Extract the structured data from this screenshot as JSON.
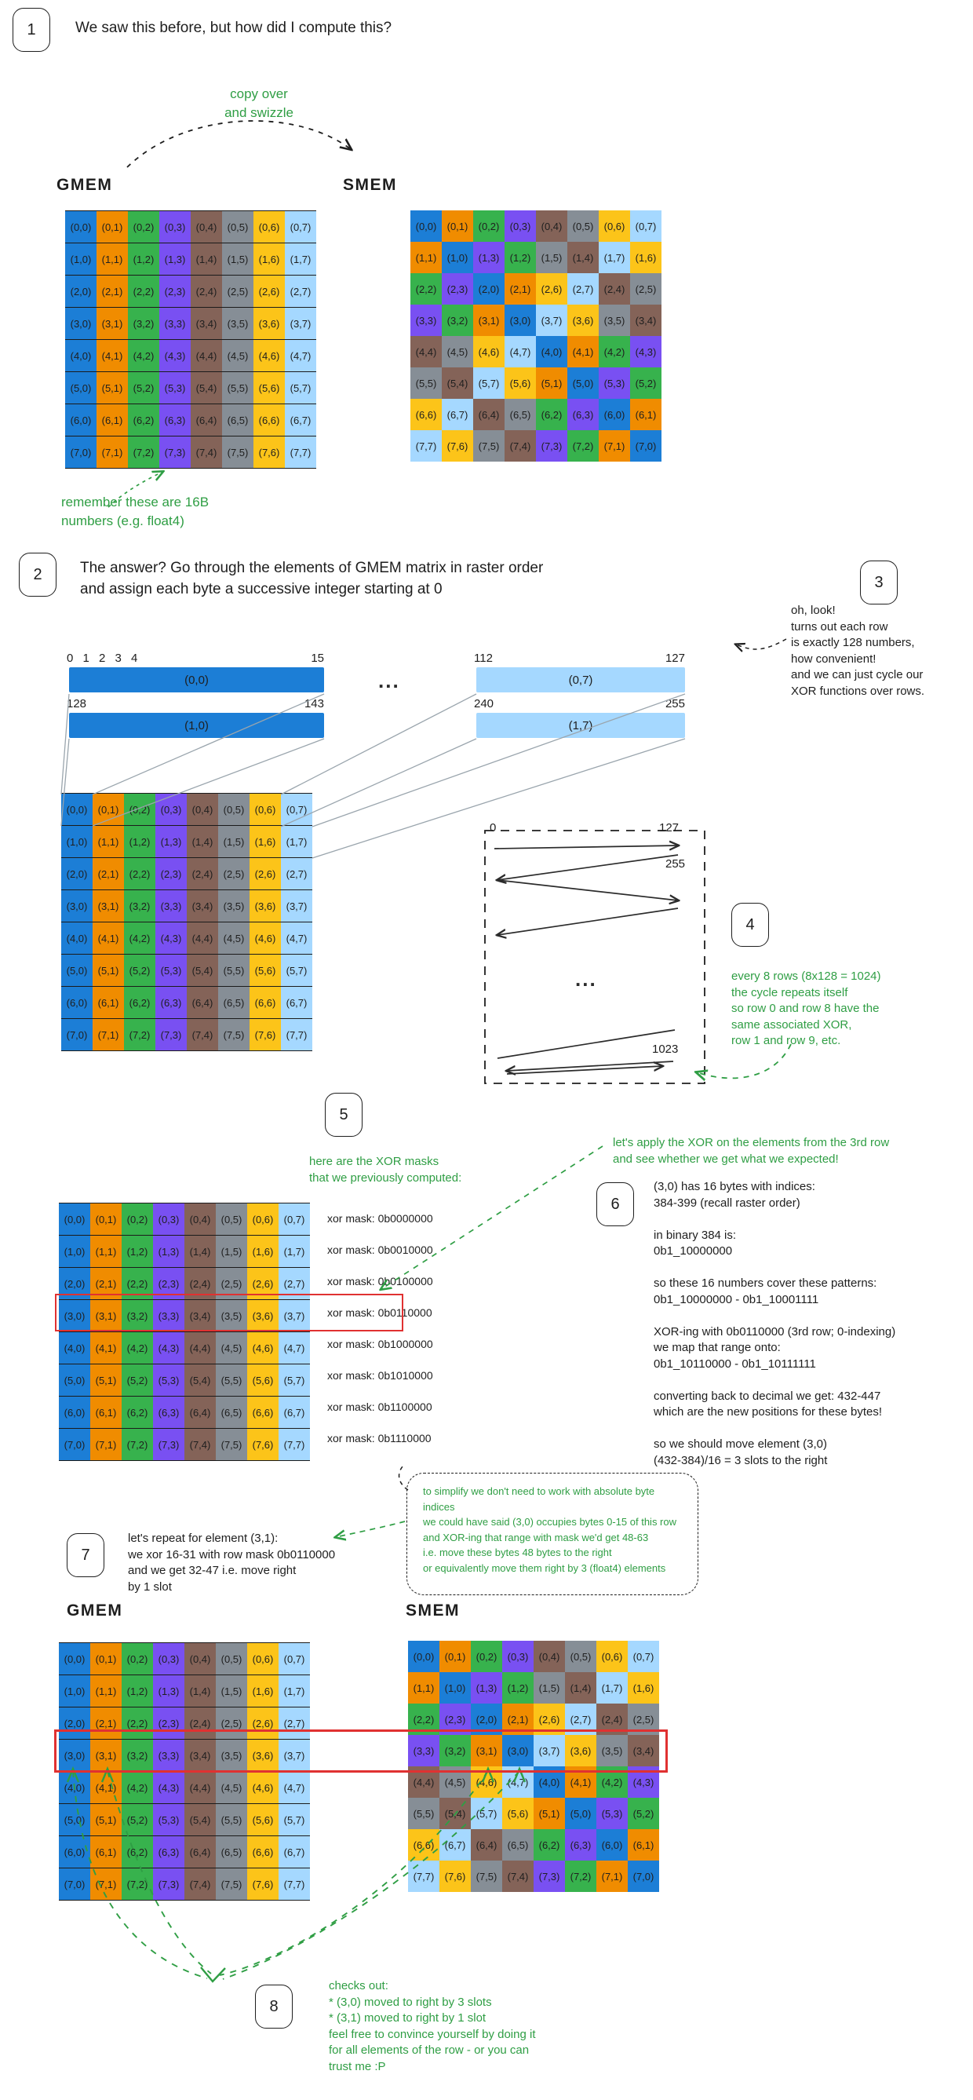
{
  "palette": {
    "0": "#1c7ed6",
    "1": "#f08c00",
    "2": "#37b24d",
    "3": "#7950f2",
    "4": "#846358",
    "5": "#868e96",
    "6": "#fcc419",
    "7": "#a5d8ff"
  },
  "colors": {
    "green": "#2f9e44",
    "red": "#e03131",
    "ink": "#1e1e1e",
    "connector": "#9aa5ad"
  },
  "labels": {
    "gmem_top": "GMEM",
    "smem_top": "SMEM",
    "gmem_bottom": "GMEM",
    "smem_bottom": "SMEM",
    "ellipsis": "...",
    "zigzag_ellipsis": "..."
  },
  "steps": {
    "s1": {
      "badge": "1",
      "text": "We saw this before, but how did I compute this?"
    },
    "s2": {
      "badge": "2",
      "text": "The answer? Go through the elements of GMEM matrix in raster order\nand assign each byte a successive integer starting at 0"
    },
    "s3": {
      "badge": "3",
      "text": "oh, look!\nturns out each row\nis exactly 128 numbers,\nhow convenient!\nand we can just cycle our\nXOR functions over rows."
    },
    "s4": {
      "badge": "4",
      "text": "every 8 rows (8x128 = 1024)\nthe cycle repeats itself\nso row 0 and row 8 have the\nsame associated XOR,\nrow 1 and row 9, etc."
    },
    "s5": {
      "badge": "5",
      "text": "here are the XOR masks\nthat we previously computed:"
    },
    "s6": {
      "badge": "6",
      "intro": "let's apply the XOR on the elements from the 3rd row\nand see whether we get what we expected!",
      "body": "(3,0) has 16 bytes with indices:\n384-399 (recall raster order)\n\nin binary 384 is:\n0b1_10000000\n\nso these 16 numbers cover these patterns:\n0b1_10000000 - 0b1_10001111\n\nXOR-ing with 0b0110000 (3rd row; 0-indexing)\nwe map that range onto:\n0b1_10110000 - 0b1_10111111\n\nconverting back to decimal we get: 432-447\nwhich are the new positions for these bytes!\n\nso we should move element (3,0)\n(432-384)/16 = 3 slots to the right"
    },
    "s7": {
      "badge": "7",
      "text": "let's repeat for element (3,1):\nwe xor 16-31 with row mask 0b0110000\nand we get 32-47 i.e. move right\nby 1 slot"
    },
    "s8": {
      "badge": "8",
      "text": "checks out:\n* (3,0) moved to right by 3 slots\n* (3,1) moved to right by 1 slot\nfeel free to convince yourself by doing it\nfor all elements of the row - or you can\ntrust me :P"
    }
  },
  "annotations": {
    "copy_swizzle": "copy over\nand swizzle",
    "remember_16b": "remember these are 16B\nnumbers (e.g. float4)",
    "bubble": "to simplify we don't need to work with absolute byte indices\nwe could have said (3,0) occupies bytes 0-15 of this row\nand XOR-ing that range with mask we'd get 48-63\ni.e. move these bytes 48 bytes to the right\nor equivalently move them right by 3 (float4) elements"
  },
  "bars": [
    {
      "left_tick": "0 1 2 3 4",
      "right_tick": "15",
      "label": "(0,0)",
      "color": "#1c7ed6"
    },
    {
      "left_tick": "128",
      "right_tick": "143",
      "label": "(1,0)",
      "color": "#1c7ed6"
    },
    {
      "left_tick": "112",
      "right_tick": "127",
      "label": "(0,7)",
      "color": "#a5d8ff"
    },
    {
      "left_tick": "240",
      "right_tick": "255",
      "label": "(1,7)",
      "color": "#a5d8ff"
    }
  ],
  "zigzag": {
    "start": "0",
    "row0_end": "127",
    "row1_end": "255",
    "dots": "...",
    "last": "1023"
  },
  "xor_masks": [
    "xor mask: 0b0000000",
    "xor mask: 0b0010000",
    "xor mask: 0b0100000",
    "xor mask: 0b0110000",
    "xor mask: 0b1000000",
    "xor mask: 0b1010000",
    "xor mask: 0b1100000",
    "xor mask: 0b1110000"
  ],
  "grids": {
    "raster": [
      [
        "(0,0)",
        "(0,1)",
        "(0,2)",
        "(0,3)",
        "(0,4)",
        "(0,5)",
        "(0,6)",
        "(0,7)"
      ],
      [
        "(1,0)",
        "(1,1)",
        "(1,2)",
        "(1,3)",
        "(1,4)",
        "(1,5)",
        "(1,6)",
        "(1,7)"
      ],
      [
        "(2,0)",
        "(2,1)",
        "(2,2)",
        "(2,3)",
        "(2,4)",
        "(2,5)",
        "(2,6)",
        "(2,7)"
      ],
      [
        "(3,0)",
        "(3,1)",
        "(3,2)",
        "(3,3)",
        "(3,4)",
        "(3,5)",
        "(3,6)",
        "(3,7)"
      ],
      [
        "(4,0)",
        "(4,1)",
        "(4,2)",
        "(4,3)",
        "(4,4)",
        "(4,5)",
        "(4,6)",
        "(4,7)"
      ],
      [
        "(5,0)",
        "(5,1)",
        "(5,2)",
        "(5,3)",
        "(5,4)",
        "(5,5)",
        "(5,6)",
        "(5,7)"
      ],
      [
        "(6,0)",
        "(6,1)",
        "(6,2)",
        "(6,3)",
        "(6,4)",
        "(6,5)",
        "(6,6)",
        "(6,7)"
      ],
      [
        "(7,0)",
        "(7,1)",
        "(7,2)",
        "(7,3)",
        "(7,4)",
        "(7,5)",
        "(7,6)",
        "(7,7)"
      ]
    ],
    "swizzled": [
      [
        "(0,0)",
        "(0,1)",
        "(0,2)",
        "(0,3)",
        "(0,4)",
        "(0,5)",
        "(0,6)",
        "(0,7)"
      ],
      [
        "(1,1)",
        "(1,0)",
        "(1,3)",
        "(1,2)",
        "(1,5)",
        "(1,4)",
        "(1,7)",
        "(1,6)"
      ],
      [
        "(2,2)",
        "(2,3)",
        "(2,0)",
        "(2,1)",
        "(2,6)",
        "(2,7)",
        "(2,4)",
        "(2,5)"
      ],
      [
        "(3,3)",
        "(3,2)",
        "(3,1)",
        "(3,0)",
        "(3,7)",
        "(3,6)",
        "(3,5)",
        "(3,4)"
      ],
      [
        "(4,4)",
        "(4,5)",
        "(4,6)",
        "(4,7)",
        "(4,0)",
        "(4,1)",
        "(4,2)",
        "(4,3)"
      ],
      [
        "(5,5)",
        "(5,4)",
        "(5,7)",
        "(5,6)",
        "(5,1)",
        "(5,0)",
        "(5,3)",
        "(5,2)"
      ],
      [
        "(6,6)",
        "(6,7)",
        "(6,4)",
        "(6,5)",
        "(6,2)",
        "(6,3)",
        "(6,0)",
        "(6,1)"
      ],
      [
        "(7,7)",
        "(7,6)",
        "(7,5)",
        "(7,4)",
        "(7,3)",
        "(7,2)",
        "(7,1)",
        "(7,0)"
      ]
    ]
  }
}
